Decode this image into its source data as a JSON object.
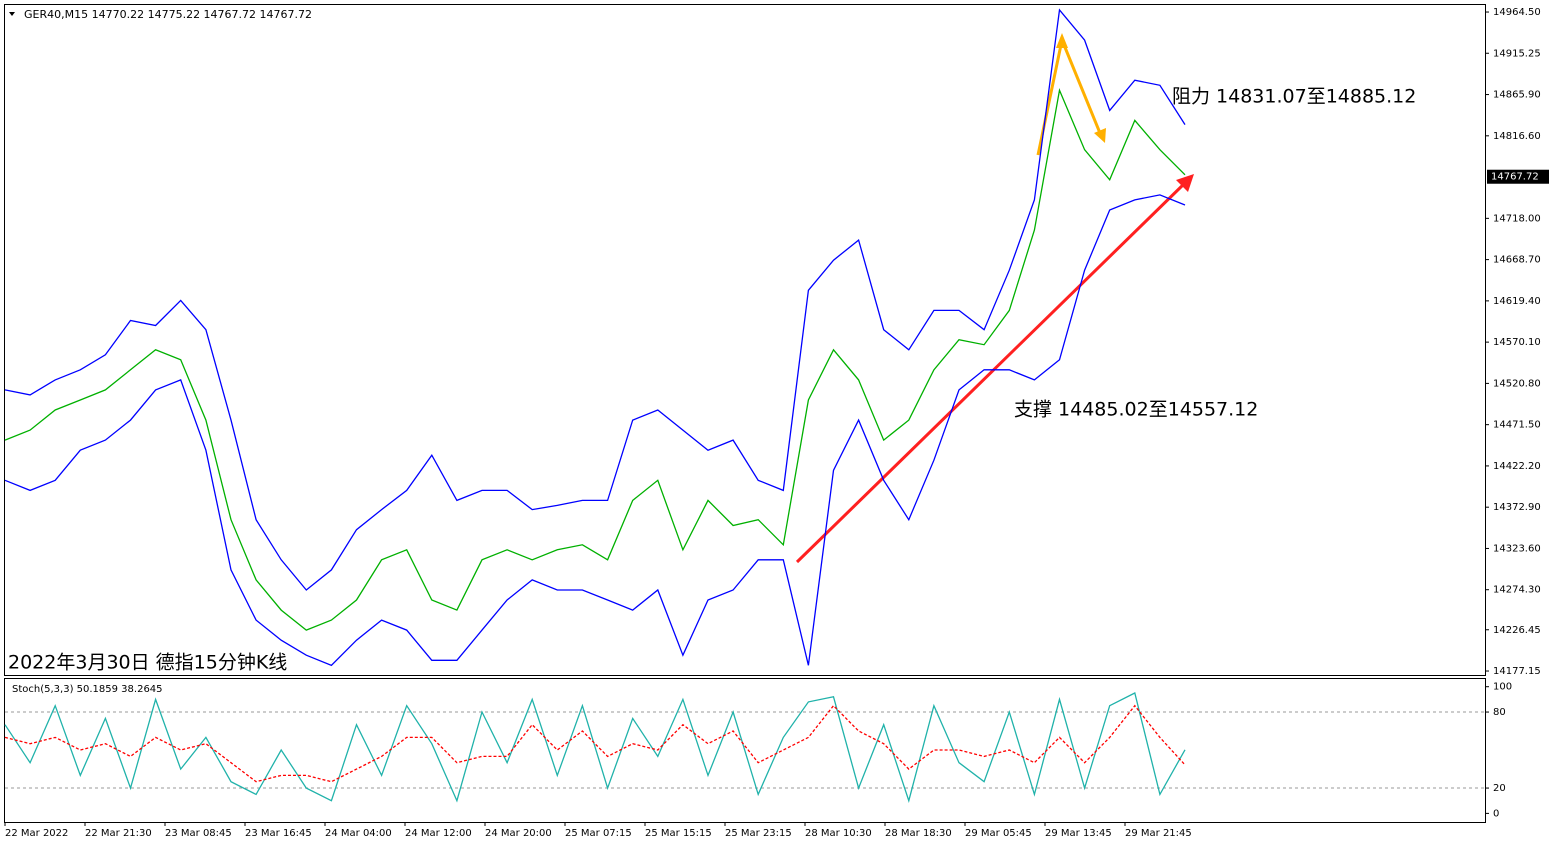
{
  "chart_data": [
    {
      "type": "line",
      "header": "GER40,M15  14770.22 14775.22 14767.72 14767.72",
      "annotations": [
        "阻力 14831.07至14885.12",
        "支撑 14485.02至14557.12",
        "2022年3月30日 德指15分钟K线"
      ],
      "time_labels": [
        "22 Mar 2022",
        "22 Mar 21:30",
        "23 Mar 08:45",
        "23 Mar 16:45",
        "24 Mar 04:00",
        "24 Mar 12:00",
        "24 Mar 20:00",
        "25 Mar 07:15",
        "25 Mar 15:15",
        "25 Mar 23:15",
        "28 Mar 10:30",
        "28 Mar 18:30",
        "29 Mar 05:45",
        "29 Mar 13:45",
        "29 Mar 21:45"
      ],
      "ylim": [
        14172.4,
        14972.9
      ],
      "yticks": [
        {
          "value": 14964.5,
          "label": "14964.50"
        },
        14915.25,
        {
          "value": 14865.9,
          "label": "14865.90"
        },
        {
          "value": 14816.6,
          "label": "14816.60"
        },
        {
          "value": 14718,
          "label": "14718.00"
        },
        {
          "value": 14668.7,
          "label": "14668.70"
        },
        {
          "value": 14619.4,
          "label": "14619.40"
        },
        {
          "value": 14570.1,
          "label": "14570.10"
        },
        {
          "value": 14520.8,
          "label": "14520.80"
        },
        {
          "value": 14471.5,
          "label": "14471.50"
        },
        {
          "value": 14422.2,
          "label": "14422.20"
        },
        {
          "value": 14372.9,
          "label": "14372.90"
        },
        {
          "value": 14323.6,
          "label": "14323.60"
        },
        {
          "value": 14274.3,
          "label": "14274.30"
        },
        14226.45,
        14177.15
      ],
      "last_price": 14767.72,
      "series": [
        {
          "color": "#00b000",
          "values": [
            14453,
            14465,
            14489,
            14501,
            14513,
            14537,
            14561,
            14549,
            14477,
            14358,
            14286,
            14250,
            14226,
            14238,
            14262,
            14310,
            14322,
            14262,
            14250,
            14310,
            14322,
            14310,
            14322,
            14328,
            14310,
            14381,
            14405,
            14322,
            14381,
            14351,
            14358,
            14328,
            14501,
            14561,
            14525,
            14453,
            14477,
            14537,
            14573,
            14567,
            14608,
            14704,
            14871,
            14800,
            14764,
            14835,
            14800,
            14770
          ]
        },
        {
          "color": "#0000ff",
          "values": [
            14513,
            14507,
            14525,
            14537,
            14555,
            14596,
            14590,
            14620,
            14585,
            14477,
            14358,
            14310,
            14274,
            14298,
            14346,
            14370,
            14393,
            14435,
            14381,
            14393,
            14393,
            14370,
            14375,
            14381,
            14381,
            14477,
            14489,
            14465,
            14441,
            14453,
            14405,
            14393,
            14632,
            14668,
            14692,
            14585,
            14561,
            14608,
            14608,
            14585,
            14656,
            14740,
            14967,
            14931,
            14847,
            14883,
            14877,
            14830
          ]
        },
        {
          "color": "#0000ff",
          "values": [
            14405,
            14393,
            14405,
            14441,
            14453,
            14477,
            14513,
            14525,
            14441,
            14298,
            14238,
            14214,
            14196,
            14184,
            14214,
            14238,
            14226,
            14190,
            14190,
            14226,
            14262,
            14286,
            14274,
            14274,
            14262,
            14250,
            14274,
            14196,
            14262,
            14274,
            14310,
            14310,
            14184,
            14417,
            14477,
            14405,
            14358,
            14429,
            14513,
            14537,
            14537,
            14525,
            14549,
            14656,
            14728,
            14740,
            14746,
            14734
          ]
        }
      ]
    },
    {
      "type": "line",
      "label": "Stoch(5,3,3) 50.1859 38.2645",
      "ylim": [
        -6.8,
        105.3
      ],
      "yticks": [
        0,
        20,
        80,
        100
      ],
      "levels": [
        20,
        80
      ],
      "series": [
        {
          "color": "#20b2aa",
          "values": [
            70,
            40,
            85,
            30,
            75,
            20,
            90,
            35,
            60,
            25,
            15,
            50,
            20,
            10,
            70,
            30,
            85,
            55,
            10,
            80,
            40,
            90,
            30,
            85,
            20,
            75,
            45,
            90,
            30,
            80,
            15,
            60,
            88,
            92,
            20,
            70,
            10,
            85,
            40,
            25,
            80,
            15,
            90,
            20,
            85,
            95,
            15,
            50.1859
          ]
        },
        {
          "color": "#ff0000",
          "dash": true,
          "values": [
            60,
            55,
            60,
            50,
            55,
            45,
            60,
            50,
            55,
            40,
            25,
            30,
            30,
            25,
            35,
            45,
            60,
            60,
            40,
            45,
            45,
            70,
            50,
            65,
            45,
            55,
            50,
            70,
            55,
            65,
            40,
            50,
            60,
            85,
            65,
            55,
            35,
            50,
            50,
            45,
            50,
            40,
            60,
            40,
            60,
            85,
            60,
            38.2645
          ]
        }
      ]
    }
  ]
}
